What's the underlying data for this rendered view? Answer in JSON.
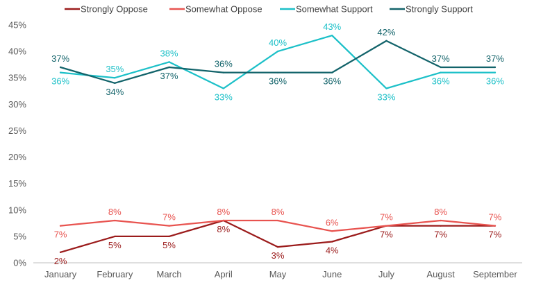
{
  "chart_data": {
    "type": "line",
    "title": "",
    "xlabel": "",
    "ylabel": "",
    "categories": [
      "January",
      "February",
      "March",
      "April",
      "May",
      "June",
      "July",
      "August",
      "September"
    ],
    "y_ticks": [
      "0%",
      "5%",
      "10%",
      "15%",
      "20%",
      "25%",
      "30%",
      "35%",
      "40%",
      "45%"
    ],
    "ylim": [
      0,
      45
    ],
    "grid": false,
    "legend_position": "top",
    "series": [
      {
        "name": "Strongly Oppose",
        "color": "#9b1b1b",
        "values": [
          2,
          5,
          5,
          8,
          3,
          4,
          7,
          7,
          7
        ],
        "labels": [
          "2%",
          "5%",
          "5%",
          "8%",
          "3%",
          "4%",
          "7%",
          "7%",
          "7%"
        ],
        "label_positions": [
          "below",
          "below",
          "below",
          "below",
          "below",
          "below",
          "below",
          "below",
          "below"
        ]
      },
      {
        "name": "Somewhat Oppose",
        "color": "#e8534f",
        "values": [
          7,
          8,
          7,
          8,
          8,
          6,
          7,
          8,
          7
        ],
        "labels": [
          "7%",
          "8%",
          "7%",
          "8%",
          "8%",
          "6%",
          "7%",
          "8%",
          "7%"
        ],
        "label_positions": [
          "below",
          "above",
          "above",
          "above",
          "above",
          "above",
          "above",
          "above",
          "above"
        ]
      },
      {
        "name": "Somewhat Support",
        "color": "#1cc0c8",
        "values": [
          36,
          35,
          38,
          33,
          40,
          43,
          33,
          36,
          36
        ],
        "labels": [
          "36%",
          "35%",
          "38%",
          "33%",
          "40%",
          "43%",
          "33%",
          "36%",
          "36%"
        ],
        "label_positions": [
          "below",
          "above",
          "above",
          "below",
          "above",
          "above",
          "below",
          "below",
          "below"
        ]
      },
      {
        "name": "Strongly Support",
        "color": "#12636a",
        "values": [
          37,
          34,
          37,
          36,
          36,
          36,
          42,
          37,
          37
        ],
        "labels": [
          "37%",
          "34%",
          "37%",
          "36%",
          "36%",
          "36%",
          "42%",
          "37%",
          "37%"
        ],
        "label_positions": [
          "above",
          "below",
          "below",
          "above",
          "below",
          "below",
          "above",
          "above",
          "above"
        ]
      }
    ]
  }
}
